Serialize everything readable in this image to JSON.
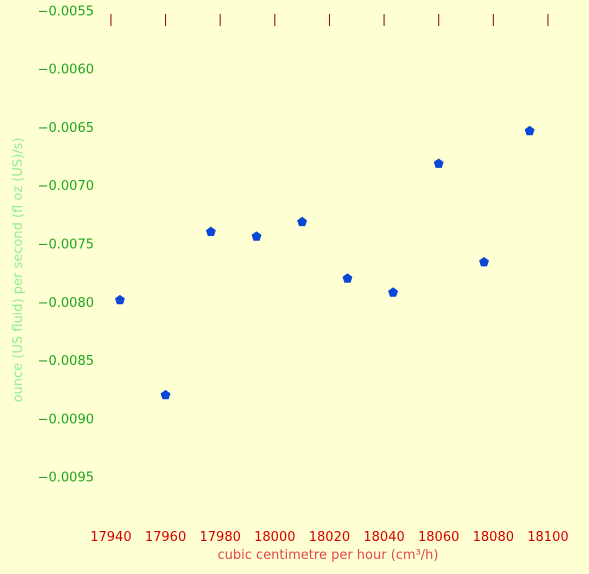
{
  "chart_data": {
    "type": "scatter",
    "xlabel": "cubic centimetre per hour (cm³/h)",
    "ylabel": "ounce (US fluid) per second (fl oz (US)/s)",
    "x_ticks": [
      "17940",
      "17960",
      "17980",
      "18000",
      "18020",
      "18040",
      "18060",
      "18080",
      "18100"
    ],
    "x_tick_values": [
      17940,
      17960,
      17980,
      18000,
      18020,
      18040,
      18060,
      18080,
      18100
    ],
    "y_ticks": [
      "−0.0055",
      "−0.0060",
      "−0.0065",
      "−0.0070",
      "−0.0075",
      "−0.0080",
      "−0.0085",
      "−0.0090",
      "−0.0095"
    ],
    "y_tick_values": [
      -0.0055,
      -0.006,
      -0.0065,
      -0.007,
      -0.0075,
      -0.008,
      -0.0085,
      -0.009,
      -0.0095
    ],
    "xlim": [
      17936,
      18111
    ],
    "ylim": [
      -0.00982,
      -0.00548
    ],
    "grid": false,
    "x_tick_marks_position": "top",
    "points": [
      {
        "x": 17943.3,
        "y": -0.007985
      },
      {
        "x": 17960.0,
        "y": -0.0088
      },
      {
        "x": 17976.6,
        "y": -0.0074
      },
      {
        "x": 17993.3,
        "y": -0.00744
      },
      {
        "x": 18010.0,
        "y": -0.007315
      },
      {
        "x": 18026.6,
        "y": -0.0078
      },
      {
        "x": 18043.3,
        "y": -0.00792
      },
      {
        "x": 18060.0,
        "y": -0.006815
      },
      {
        "x": 18076.6,
        "y": -0.00766
      },
      {
        "x": 18093.3,
        "y": -0.006535
      }
    ],
    "colors": {
      "background": "#ffffd4",
      "marker": "#0a47d6",
      "x_tick_labels": "#d40000",
      "x_tick_marks": "#8b0000",
      "y_tick_labels": "#1fa51f",
      "xlabel": "#e0474c",
      "ylabel": "#90ee90"
    }
  }
}
